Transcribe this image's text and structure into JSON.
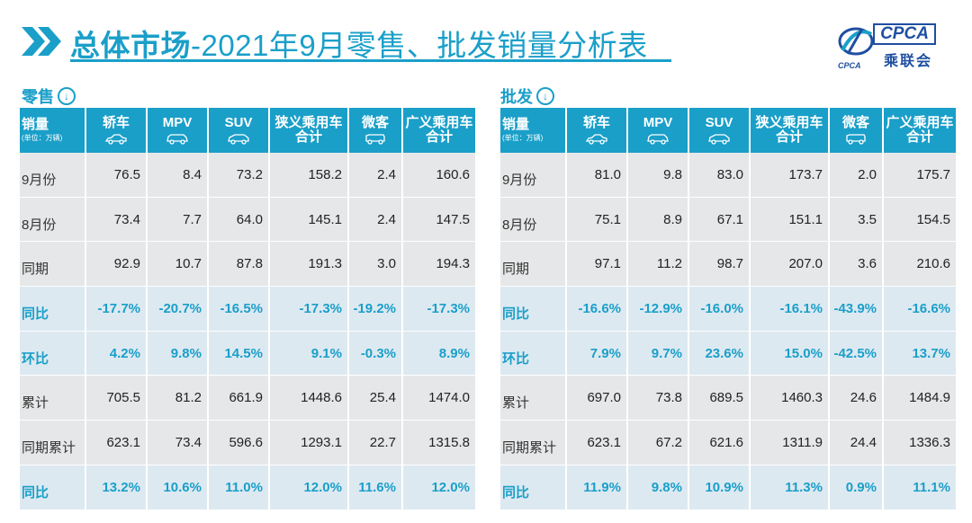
{
  "header": {
    "title_bold": "总体市场",
    "title_rest": "-2021年9月零售、批发销量分析表"
  },
  "logo": {
    "abbr": "CPCA",
    "cn": "乘联会",
    "mark": "CPCA"
  },
  "colors": {
    "accent": "#1a9fc9",
    "row_plain": "#e6e7e8",
    "row_highlight": "#dde9f1",
    "logo": "#1f4fa0"
  },
  "retail": {
    "label": "零售",
    "columns": [
      {
        "label": "销量",
        "sub": "(单位：万辆)"
      },
      {
        "label": "轿车",
        "icon": "sedan-icon"
      },
      {
        "label": "MPV",
        "icon": "mpv-icon"
      },
      {
        "label": "SUV",
        "icon": "suv-icon"
      },
      {
        "label": "狭义乘用车\n合计"
      },
      {
        "label": "微客",
        "icon": "minivan-icon"
      },
      {
        "label": "广义乘用车\n合计"
      }
    ],
    "rows": [
      {
        "label": "9月份",
        "highlight": false,
        "values": [
          "76.5",
          "8.4",
          "73.2",
          "158.2",
          "2.4",
          "160.6"
        ]
      },
      {
        "label": "8月份",
        "highlight": false,
        "values": [
          "73.4",
          "7.7",
          "64.0",
          "145.1",
          "2.4",
          "147.5"
        ]
      },
      {
        "label": "同期",
        "highlight": false,
        "values": [
          "92.9",
          "10.7",
          "87.8",
          "191.3",
          "3.0",
          "194.3"
        ]
      },
      {
        "label": "同比",
        "highlight": true,
        "values": [
          "-17.7%",
          "-20.7%",
          "-16.5%",
          "-17.3%",
          "-19.2%",
          "-17.3%"
        ]
      },
      {
        "label": "环比",
        "highlight": true,
        "values": [
          "4.2%",
          "9.8%",
          "14.5%",
          "9.1%",
          "-0.3%",
          "8.9%"
        ]
      },
      {
        "label": "累计",
        "highlight": false,
        "values": [
          "705.5",
          "81.2",
          "661.9",
          "1448.6",
          "25.4",
          "1474.0"
        ]
      },
      {
        "label": "同期累计",
        "highlight": false,
        "values": [
          "623.1",
          "73.4",
          "596.6",
          "1293.1",
          "22.7",
          "1315.8"
        ]
      },
      {
        "label": "同比",
        "highlight": true,
        "values": [
          "13.2%",
          "10.6%",
          "11.0%",
          "12.0%",
          "11.6%",
          "12.0%"
        ]
      }
    ]
  },
  "wholesale": {
    "label": "批发",
    "columns": [
      {
        "label": "销量",
        "sub": "(单位：万辆)"
      },
      {
        "label": "轿车",
        "icon": "sedan-icon"
      },
      {
        "label": "MPV",
        "icon": "mpv-icon"
      },
      {
        "label": "SUV",
        "icon": "suv-icon"
      },
      {
        "label": "狭义乘用车\n合计"
      },
      {
        "label": "微客",
        "icon": "minivan-icon"
      },
      {
        "label": "广义乘用车\n合计"
      }
    ],
    "rows": [
      {
        "label": "9月份",
        "highlight": false,
        "values": [
          "81.0",
          "9.8",
          "83.0",
          "173.7",
          "2.0",
          "175.7"
        ]
      },
      {
        "label": "8月份",
        "highlight": false,
        "values": [
          "75.1",
          "8.9",
          "67.1",
          "151.1",
          "3.5",
          "154.5"
        ]
      },
      {
        "label": "同期",
        "highlight": false,
        "values": [
          "97.1",
          "11.2",
          "98.7",
          "207.0",
          "3.6",
          "210.6"
        ]
      },
      {
        "label": "同比",
        "highlight": true,
        "values": [
          "-16.6%",
          "-12.9%",
          "-16.0%",
          "-16.1%",
          "-43.9%",
          "-16.6%"
        ]
      },
      {
        "label": "环比",
        "highlight": true,
        "values": [
          "7.9%",
          "9.7%",
          "23.6%",
          "15.0%",
          "-42.5%",
          "13.7%"
        ]
      },
      {
        "label": "累计",
        "highlight": false,
        "values": [
          "697.0",
          "73.8",
          "689.5",
          "1460.3",
          "24.6",
          "1484.9"
        ]
      },
      {
        "label": "同期累计",
        "highlight": false,
        "values": [
          "623.1",
          "67.2",
          "621.6",
          "1311.9",
          "24.4",
          "1336.3"
        ]
      },
      {
        "label": "同比",
        "highlight": true,
        "values": [
          "11.9%",
          "9.8%",
          "10.9%",
          "11.3%",
          "0.9%",
          "11.1%"
        ]
      }
    ]
  }
}
